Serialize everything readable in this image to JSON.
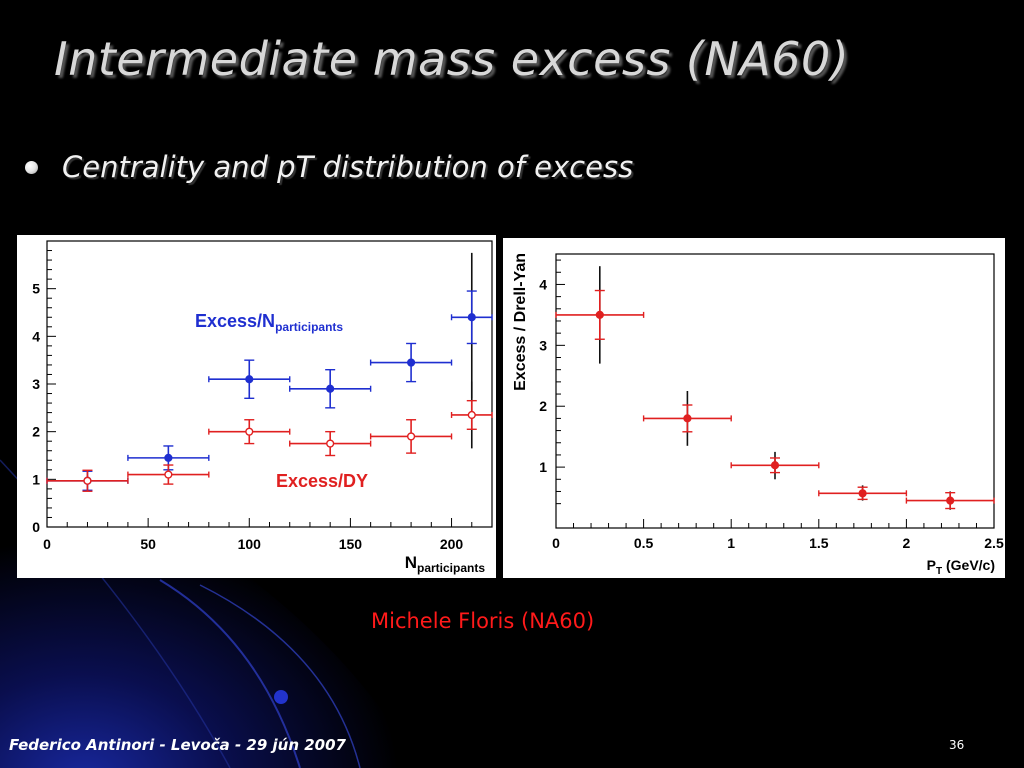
{
  "slide": {
    "title": "Intermediate mass excess (NA60)",
    "bullet": "Centrality and pT distribution of excess",
    "credit": "Michele Floris (NA60)",
    "footer": "Federico Antinori - Levoča - 29 jún 2007",
    "page_number": "36"
  },
  "colors": {
    "background": "#000000",
    "blue_series": "#1f2fd0",
    "red_series": "#e02020",
    "black_errors": "#111111"
  },
  "chart_data": [
    {
      "type": "scatter",
      "xlabel_main": "N",
      "xlabel_sub": "participants",
      "xlim": [
        0,
        220
      ],
      "ylim": [
        0,
        6
      ],
      "x_ticks": [
        "0",
        "50",
        "100",
        "150",
        "200"
      ],
      "y_ticks": [
        "0",
        "1",
        "2",
        "3",
        "4",
        "5"
      ],
      "series": [
        {
          "label_main": "Excess/N",
          "label_sub": "participants",
          "color": "#1f2fd0",
          "marker": "filled",
          "points": [
            {
              "x": 20,
              "xerr": 20,
              "y": 0.97,
              "yerr": 0.2
            },
            {
              "x": 60,
              "xerr": 20,
              "y": 1.45,
              "yerr": 0.25
            },
            {
              "x": 100,
              "xerr": 20,
              "y": 3.1,
              "yerr": 0.4
            },
            {
              "x": 140,
              "xerr": 20,
              "y": 2.9,
              "yerr": 0.4
            },
            {
              "x": 180,
              "xerr": 20,
              "y": 3.45,
              "yerr": 0.4
            },
            {
              "x": 210,
              "xerr": 10,
              "y": 4.4,
              "yerr": 0.55,
              "syst_low": 2.7,
              "syst_high": 5.75
            }
          ]
        },
        {
          "label_main": "Excess/DY",
          "label_sub": "",
          "color": "#e02020",
          "marker": "open",
          "points": [
            {
              "x": 20,
              "xerr": 20,
              "y": 0.97,
              "yerr": 0.22
            },
            {
              "x": 60,
              "xerr": 20,
              "y": 1.1,
              "yerr": 0.2
            },
            {
              "x": 100,
              "xerr": 20,
              "y": 2.0,
              "yerr": 0.25
            },
            {
              "x": 140,
              "xerr": 20,
              "y": 1.75,
              "yerr": 0.25
            },
            {
              "x": 180,
              "xerr": 20,
              "y": 1.9,
              "yerr": 0.35
            },
            {
              "x": 210,
              "xerr": 10,
              "y": 2.35,
              "yerr": 0.3,
              "syst_low": 1.65,
              "syst_high": 3.05
            }
          ]
        }
      ]
    },
    {
      "type": "scatter",
      "ylabel": "Excess / Drell-Yan",
      "xlabel_pre": "P",
      "xlabel_sub": "T",
      "xlabel_post": " (GeV/c)",
      "xlim": [
        0,
        2.5
      ],
      "ylim": [
        0,
        4.5
      ],
      "x_ticks": [
        "0",
        "0.5",
        "1",
        "1.5",
        "2",
        "2.5"
      ],
      "y_ticks": [
        "1",
        "2",
        "3",
        "4"
      ],
      "series": [
        {
          "color": "#e02020",
          "marker": "filled",
          "points": [
            {
              "x": 0.25,
              "xerr": 0.25,
              "y": 3.5,
              "yerr": 0.4,
              "syst_low": 2.7,
              "syst_high": 4.3
            },
            {
              "x": 0.75,
              "xerr": 0.25,
              "y": 1.8,
              "yerr": 0.22,
              "syst_low": 1.35,
              "syst_high": 2.25
            },
            {
              "x": 1.25,
              "xerr": 0.25,
              "y": 1.03,
              "yerr": 0.12,
              "syst_low": 0.8,
              "syst_high": 1.25
            },
            {
              "x": 1.75,
              "xerr": 0.25,
              "y": 0.57,
              "yerr": 0.1,
              "syst_low": 0.45,
              "syst_high": 0.7
            },
            {
              "x": 2.25,
              "xerr": 0.25,
              "y": 0.45,
              "yerr": 0.13,
              "syst_low": 0.3,
              "syst_high": 0.6
            }
          ]
        }
      ]
    }
  ]
}
